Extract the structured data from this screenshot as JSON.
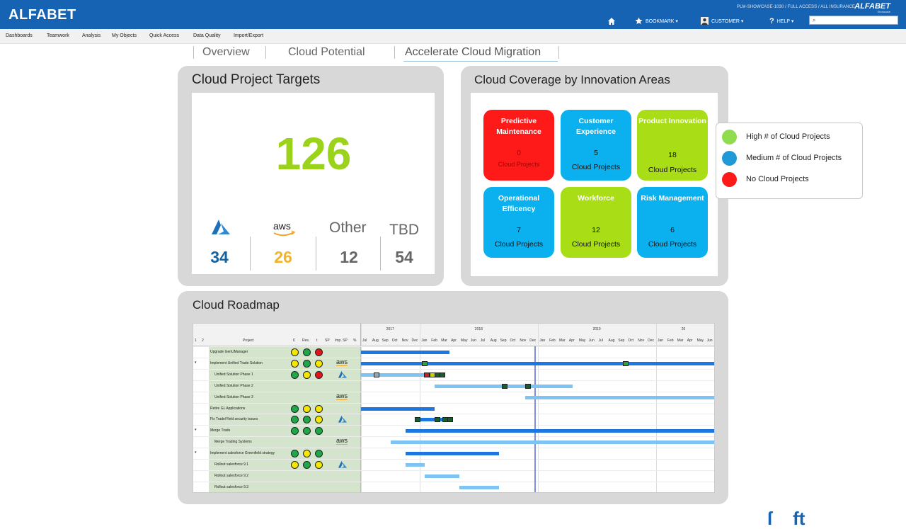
{
  "header": {
    "logo": "ALFABET",
    "context": "PLM-SHOWCASE-1030 / FULL ACCESS / ALL INSURANCE",
    "logo_small": "ALFABET",
    "logo_sub": "Showcase",
    "bookmark": "BOOKMARK ▾",
    "customer": "CUSTOMER ▾",
    "help": "HELP ▾",
    "search_value": ""
  },
  "menu": [
    "Dashboards",
    "Teamwork",
    "Analysis",
    "My Objects",
    "Quick Access",
    "Data Quality",
    "Import/Export"
  ],
  "tabs": [
    "Overview",
    "Cloud Potential",
    "Accelerate Cloud Migration"
  ],
  "targets": {
    "title": "Cloud Project Targets",
    "total": "126",
    "vendors": [
      {
        "name": "azure",
        "count": "34",
        "color": "#14629f"
      },
      {
        "name": "aws",
        "count": "26",
        "color": "#f2b22a"
      },
      {
        "name": "Other",
        "count": "12",
        "color": "#666666"
      },
      {
        "name": "TBD",
        "count": "54",
        "color": "#666666"
      }
    ]
  },
  "coverage": {
    "title": "Cloud Coverage by Innovation Areas",
    "tiles": [
      {
        "title": "Predictive Maintenance",
        "count": "0",
        "label": "Cloud Projects",
        "color": "#ff1a1a"
      },
      {
        "title": "Customer Experience",
        "count": "5",
        "label": "Cloud Projects",
        "color": "#0ab1ee"
      },
      {
        "title": "Product Innovation",
        "count": "18",
        "label": "Cloud Projects",
        "color": "#a9dd16"
      },
      {
        "title": "Operational Efficency",
        "count": "7",
        "label": "Cloud Projects",
        "color": "#0ab1ee"
      },
      {
        "title": "Workforce",
        "count": "12",
        "label": "Cloud Projects",
        "color": "#a9dd16"
      },
      {
        "title": "Risk Management",
        "count": "6",
        "label": "Cloud Projects",
        "color": "#0ab1ee"
      }
    ],
    "legend": [
      {
        "text": "High # of Cloud Projects",
        "color": "#8fdc4e"
      },
      {
        "text": "Medium # of Cloud Projects",
        "color": "#1f9ad6"
      },
      {
        "text": "No Cloud Projects",
        "color": "#ff1a1a"
      }
    ]
  },
  "roadmap": {
    "title": "Cloud Roadmap",
    "columns": {
      "num1": "1",
      "num2": "2",
      "project": "Project",
      "euro": "€",
      "res": "Res.",
      "time": "t",
      "sp": "SP",
      "imp_sp": "Imp. SP",
      "pct": "%"
    },
    "years": [
      "2017",
      "2018",
      "2019",
      "20"
    ],
    "months": [
      "Jul",
      "Aug",
      "Sep",
      "Oct",
      "Nov",
      "Dec",
      "Jan",
      "Feb",
      "Mar",
      "Apr",
      "May",
      "Jun",
      "Jul",
      "Aug",
      "Sep",
      "Oct",
      "Nov",
      "Dec",
      "Jan",
      "Feb",
      "Mar",
      "Apr",
      "May",
      "Jun",
      "Jul",
      "Aug",
      "Sep",
      "Oct",
      "Nov",
      "Dec",
      "Jan",
      "Feb",
      "Mar",
      "Apr",
      "May",
      "Jun"
    ],
    "rows": [
      {
        "name": "Upgrade GenUManager",
        "indent": 0,
        "expand": "",
        "dots": [
          "y",
          "g",
          "r"
        ],
        "vendor": ""
      },
      {
        "name": "Implement Unified Trade Solution",
        "indent": 0,
        "expand": "▾",
        "dots": [
          "y",
          "g",
          "y"
        ],
        "vendor": "aws"
      },
      {
        "name": "Unified Solution Phase 1",
        "indent": 1,
        "expand": "",
        "dots": [
          "g",
          "y",
          "r"
        ],
        "vendor": "azure"
      },
      {
        "name": "Unified Solution Phase 2",
        "indent": 1,
        "expand": "",
        "dots": [],
        "vendor": ""
      },
      {
        "name": "Unified Solution Phase 3",
        "indent": 1,
        "expand": "",
        "dots": [],
        "vendor": "aws"
      },
      {
        "name": "Retire GL Applications",
        "indent": 0,
        "expand": "",
        "dots": [
          "g",
          "y",
          "y"
        ],
        "vendor": ""
      },
      {
        "name": "Fix Trade/Yield security issues",
        "indent": 0,
        "expand": "",
        "dots": [
          "g",
          "g",
          "y"
        ],
        "vendor": "azure"
      },
      {
        "name": "Merge Trade",
        "indent": 0,
        "expand": "▾",
        "dots": [
          "g",
          "g",
          "g"
        ],
        "vendor": ""
      },
      {
        "name": "Merge Trading Systems",
        "indent": 1,
        "expand": "",
        "dots": [],
        "vendor": "aws"
      },
      {
        "name": "Implement salesforce Greenfield strategy",
        "indent": 0,
        "expand": "▾",
        "dots": [
          "g",
          "y",
          "g"
        ],
        "vendor": ""
      },
      {
        "name": "Rollout salesforce 9.1",
        "indent": 1,
        "expand": "",
        "dots": [
          "y",
          "g",
          "y"
        ],
        "vendor": "azure"
      },
      {
        "name": "Rollout salesforce 9.2",
        "indent": 1,
        "expand": "",
        "dots": [],
        "vendor": ""
      },
      {
        "name": "Rollout salesforce 9.3",
        "indent": 1,
        "expand": "",
        "dots": [],
        "vendor": ""
      }
    ]
  }
}
